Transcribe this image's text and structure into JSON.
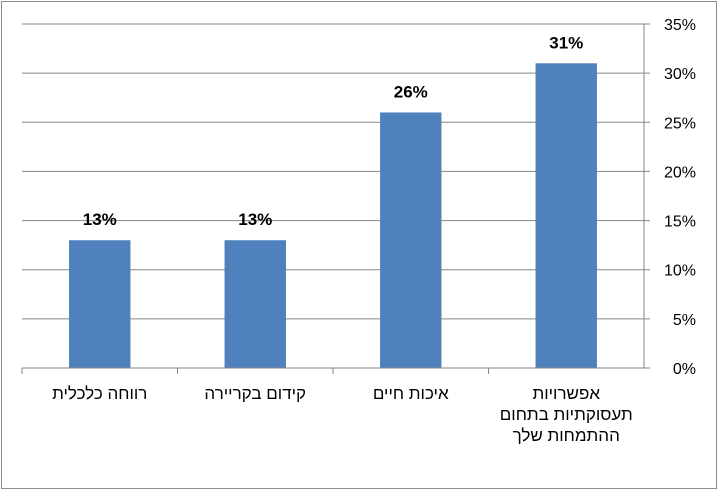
{
  "chart_data": {
    "type": "bar",
    "categories": [
      "רווחה כלכלית",
      "קידום בקריירה",
      "איכות חיים",
      "אפשרויות תעסוקתיות בתחום ההתמחות שלך"
    ],
    "values": [
      13,
      13,
      26,
      31
    ],
    "data_labels": [
      "13%",
      "13%",
      "26%",
      "31%"
    ],
    "ylim": [
      0,
      35
    ],
    "y_ticks": [
      "0%",
      "5%",
      "10%",
      "15%",
      "20%",
      "25%",
      "30%",
      "35%"
    ],
    "y_axis_side": "right",
    "grid": true,
    "legend": "none",
    "bar_color": "#4f81bd"
  }
}
